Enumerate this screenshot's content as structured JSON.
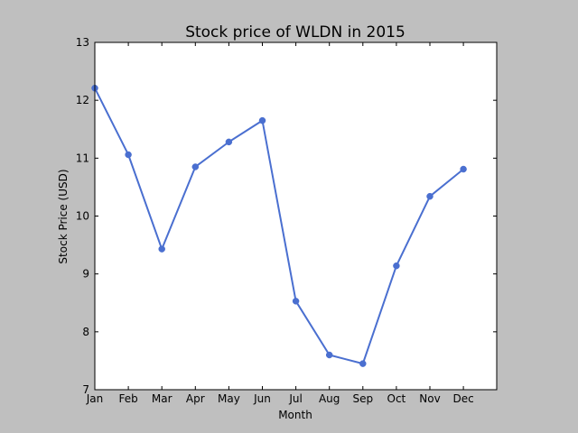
{
  "chart_data": {
    "type": "line",
    "title": "Stock price of WLDN in 2015",
    "xlabel": "Month",
    "ylabel": "Stock Price (USD)",
    "categories": [
      "Jan",
      "Feb",
      "Mar",
      "Apr",
      "May",
      "Jun",
      "Jul",
      "Aug",
      "Sep",
      "Oct",
      "Nov",
      "Dec"
    ],
    "series": [
      {
        "values": [
          12.21,
          11.06,
          9.43,
          10.85,
          11.28,
          11.65,
          8.53,
          7.6,
          7.45,
          9.14,
          10.34,
          10.81
        ]
      }
    ],
    "ylim": [
      7,
      13
    ],
    "yticks": [
      7,
      8,
      9,
      10,
      11,
      12,
      13
    ],
    "grid": false,
    "legend": "none",
    "colors": {
      "line": "#4a6fd0",
      "marker": "#4a6fd0",
      "plot_background": "#ffffff",
      "figure_background": "#bfbfbf"
    }
  }
}
